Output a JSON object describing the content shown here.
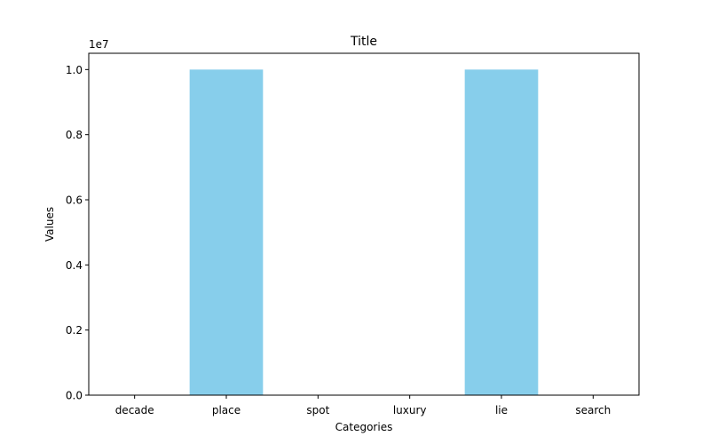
{
  "chart_data": {
    "type": "bar",
    "title": "Title",
    "xlabel": "Categories",
    "ylabel": "Values",
    "categories": [
      "decade",
      "place",
      "spot",
      "luxury",
      "lie",
      "search"
    ],
    "values": [
      0,
      10000000,
      0,
      0,
      10000000,
      0
    ],
    "ylim": [
      0,
      10500000
    ],
    "yticks": [
      0,
      2000000,
      4000000,
      6000000,
      8000000,
      10000000
    ],
    "ytick_labels": [
      "0.0",
      "0.2",
      "0.4",
      "0.6",
      "0.8",
      "1.0"
    ],
    "offset_label": "1e7",
    "bar_color": "#87ceeb",
    "grid": false,
    "legend": "none"
  }
}
